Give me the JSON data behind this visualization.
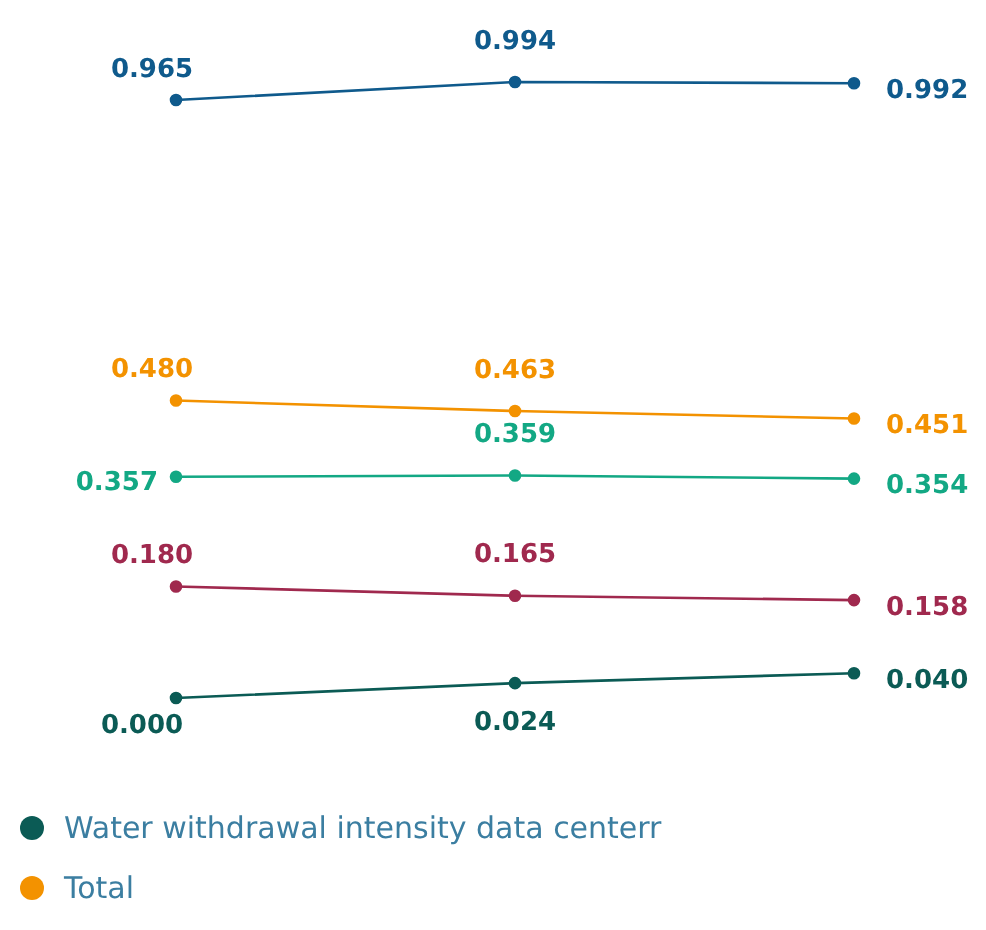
{
  "chart_data": {
    "type": "line",
    "categories": [
      null,
      null,
      null
    ],
    "series": [
      {
        "color": "#0f5a8c",
        "values": [
          0.965,
          0.994,
          0.992
        ],
        "value_labels": [
          "0.965",
          "0.994",
          "0.992"
        ]
      },
      {
        "name": "Total",
        "color": "#f39200",
        "values": [
          0.48,
          0.463,
          0.451
        ],
        "value_labels": [
          "0.480",
          "0.463",
          "0.451"
        ]
      },
      {
        "color": "#13a884",
        "values": [
          0.357,
          0.359,
          0.354
        ],
        "value_labels": [
          "0.357",
          "0.359",
          "0.354"
        ]
      },
      {
        "color": "#a0294e",
        "values": [
          0.18,
          0.165,
          0.158
        ],
        "value_labels": [
          "0.180",
          "0.165",
          "0.158"
        ]
      },
      {
        "name": "Water withdrawal intensity data centerr",
        "color": "#0b5b55",
        "values": [
          0.0,
          0.024,
          0.04
        ],
        "value_labels": [
          "0.000",
          "0.024",
          "0.040"
        ]
      }
    ],
    "legend": "bottom",
    "marker": "circle",
    "line_style": "solid"
  }
}
